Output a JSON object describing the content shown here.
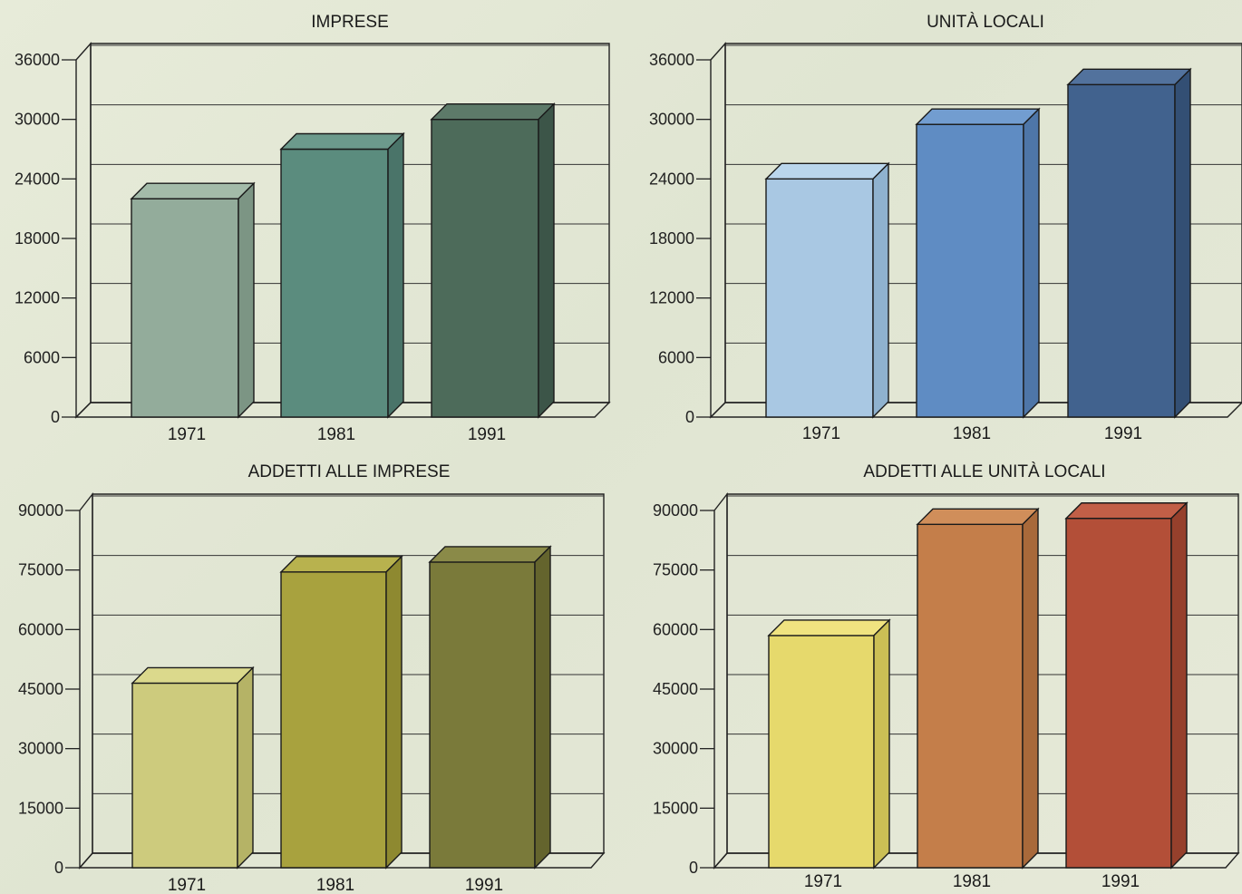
{
  "chart_data": [
    {
      "type": "bar",
      "title": "IMPRESE",
      "categories": [
        "1971",
        "1981",
        "1991"
      ],
      "values": [
        22000,
        27000,
        30000
      ],
      "yticks": [
        "0",
        "6000",
        "12000",
        "18000",
        "24000",
        "30000",
        "36000"
      ],
      "ylim": [
        0,
        36000
      ],
      "grid": true,
      "bar_colors": [
        {
          "front": "#93ac9b",
          "top": "#a3bba9",
          "side": "#7c9584"
        },
        {
          "front": "#5b8c7e",
          "top": "#6c9a8c",
          "side": "#4a7469"
        },
        {
          "front": "#4d6b5a",
          "top": "#5d7a69",
          "side": "#3c5548"
        }
      ]
    },
    {
      "type": "bar",
      "title": "UNITÀ LOCALI",
      "categories": [
        "1971",
        "1981",
        "1991"
      ],
      "values": [
        24000,
        29500,
        33500
      ],
      "yticks": [
        "0",
        "6000",
        "12000",
        "18000",
        "24000",
        "30000",
        "36000"
      ],
      "ylim": [
        0,
        36000
      ],
      "grid": true,
      "bar_colors": [
        {
          "front": "#a9c8e3",
          "top": "#bad6ec",
          "side": "#8fb2cf"
        },
        {
          "front": "#5f8cc3",
          "top": "#729dd0",
          "side": "#4e76a8"
        },
        {
          "front": "#41628e",
          "top": "#52729d",
          "side": "#334f74"
        }
      ]
    },
    {
      "type": "bar",
      "title": "ADDETTI ALLE IMPRESE",
      "categories": [
        "1971",
        "1981",
        "1991"
      ],
      "values": [
        46500,
        74500,
        77000
      ],
      "yticks": [
        "0",
        "15000",
        "30000",
        "45000",
        "60000",
        "75000",
        "90000"
      ],
      "ylim": [
        0,
        90000
      ],
      "grid": true,
      "bar_colors": [
        {
          "front": "#cdcb7d",
          "top": "#dbd98c",
          "side": "#b5b366"
        },
        {
          "front": "#a8a23e",
          "top": "#b8b24e",
          "side": "#8e8930"
        },
        {
          "front": "#7a7a3a",
          "top": "#8a8a48",
          "side": "#64642d"
        }
      ]
    },
    {
      "type": "bar",
      "title": "ADDETTI ALLE UNITÀ LOCALI",
      "categories": [
        "1971",
        "1981",
        "1991"
      ],
      "values": [
        58500,
        86500,
        88000
      ],
      "yticks": [
        "0",
        "15000",
        "30000",
        "45000",
        "60000",
        "75000",
        "90000"
      ],
      "ylim": [
        0,
        90000
      ],
      "grid": true,
      "bar_colors": [
        {
          "front": "#e6d96c",
          "top": "#f0e380",
          "side": "#cbbf55"
        },
        {
          "front": "#c47e4a",
          "top": "#d08e5a",
          "side": "#a8693a"
        },
        {
          "front": "#b34f38",
          "top": "#c25f47",
          "side": "#96402c"
        }
      ]
    }
  ]
}
